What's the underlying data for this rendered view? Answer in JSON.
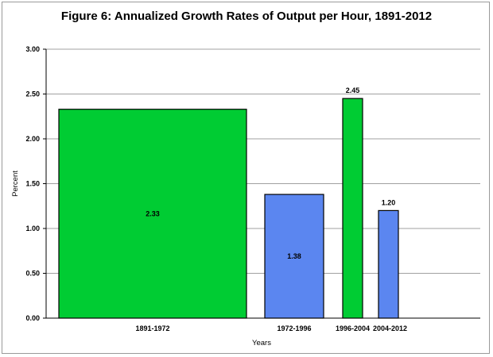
{
  "chart_data": {
    "type": "bar",
    "title": "Figure 6: Annualized Growth Rates of Output per Hour, 1891-2012",
    "xlabel": "Years",
    "ylabel": "Percent",
    "ylim": [
      0,
      3
    ],
    "yticks": [
      "0.00",
      "0.50",
      "1.00",
      "1.50",
      "2.00",
      "2.50",
      "3.00"
    ],
    "grid": true,
    "categories": [
      "1891-1972",
      "1972-1996",
      "1996-2004",
      "2004-2012"
    ],
    "values": [
      2.33,
      1.38,
      2.45,
      1.2
    ],
    "value_labels": [
      "2.33",
      "1.38",
      "2.45",
      "1.20"
    ],
    "bar_colors": [
      "#00cc33",
      "#5b86f0",
      "#00cc33",
      "#5b86f0"
    ],
    "label_inside": [
      true,
      true,
      false,
      false
    ]
  }
}
